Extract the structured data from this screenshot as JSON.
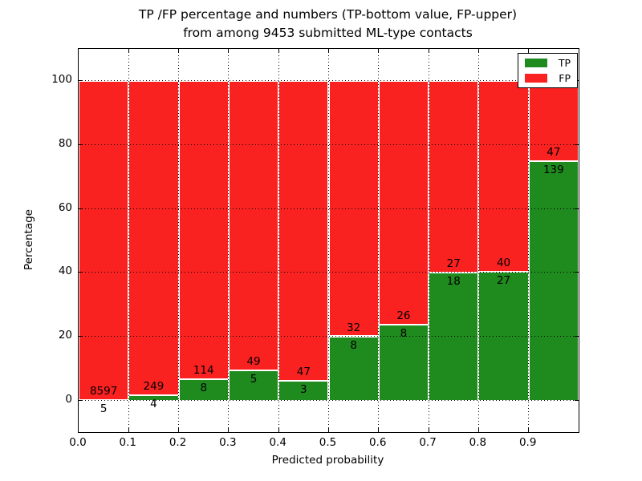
{
  "figure": {
    "title_line1": "TP /FP percentage and numbers (TP-bottom value, FP-upper)",
    "title_line2": "from among 9453 submitted ML-type contacts",
    "xlabel": "Predicted probability",
    "ylabel": "Percentage"
  },
  "legend": {
    "position": "upper right",
    "items": [
      {
        "label": "TP",
        "color": "#1f8a1e"
      },
      {
        "label": "FP",
        "color": "#fa2121"
      }
    ]
  },
  "chart_data": {
    "type": "bar",
    "stacked": true,
    "normalized_to_percent": true,
    "title": "TP /FP percentage and numbers (TP-bottom value, FP-upper) from among 9453 submitted ML-type contacts",
    "xlabel": "Predicted probability",
    "ylabel": "Percentage",
    "xlim": [
      0.0,
      1.0
    ],
    "ylim": [
      -10,
      110
    ],
    "grid": "dotted black, x at every 0.1, y at every 20",
    "bar_edge_color": "#ffffff",
    "x_tick_labels": [
      "0.0",
      "0.1",
      "0.2",
      "0.3",
      "0.4",
      "0.5",
      "0.6",
      "0.7",
      "0.8",
      "0.9"
    ],
    "x_tick_values": [
      0.0,
      0.1,
      0.2,
      0.3,
      0.4,
      0.5,
      0.6,
      0.7,
      0.8,
      0.9
    ],
    "y_tick_labels": [
      "0",
      "20",
      "40",
      "60",
      "80",
      "100"
    ],
    "y_tick_values": [
      0,
      20,
      40,
      60,
      80,
      100
    ],
    "bin_width": 0.1,
    "total_contacts": 9453,
    "series": [
      {
        "name": "TP",
        "color": "#1f8a1e",
        "values": [
          5,
          4,
          8,
          5,
          3,
          8,
          8,
          18,
          27,
          139
        ]
      },
      {
        "name": "FP",
        "color": "#fa2121",
        "values": [
          8597,
          249,
          114,
          49,
          47,
          32,
          26,
          27,
          40,
          47
        ]
      }
    ],
    "bins": [
      {
        "x_start": 0.0,
        "tp": 5,
        "fp": 8597,
        "tp_pct": 0.06,
        "fp_pct": 99.94
      },
      {
        "x_start": 0.1,
        "tp": 4,
        "fp": 249,
        "tp_pct": 1.58,
        "fp_pct": 98.42
      },
      {
        "x_start": 0.2,
        "tp": 8,
        "fp": 114,
        "tp_pct": 6.56,
        "fp_pct": 93.44
      },
      {
        "x_start": 0.3,
        "tp": 5,
        "fp": 49,
        "tp_pct": 9.26,
        "fp_pct": 90.74
      },
      {
        "x_start": 0.4,
        "tp": 3,
        "fp": 47,
        "tp_pct": 6.0,
        "fp_pct": 94.0
      },
      {
        "x_start": 0.5,
        "tp": 8,
        "fp": 32,
        "tp_pct": 20.0,
        "fp_pct": 80.0
      },
      {
        "x_start": 0.6,
        "tp": 8,
        "fp": 26,
        "tp_pct": 23.53,
        "fp_pct": 76.47
      },
      {
        "x_start": 0.7,
        "tp": 18,
        "fp": 27,
        "tp_pct": 40.0,
        "fp_pct": 60.0
      },
      {
        "x_start": 0.8,
        "tp": 27,
        "fp": 40,
        "tp_pct": 40.3,
        "fp_pct": 59.7
      },
      {
        "x_start": 0.9,
        "tp": 139,
        "fp": 47,
        "tp_pct": 74.73,
        "fp_pct": 25.27
      }
    ]
  },
  "colors": {
    "tp_green": "#1f8a1e",
    "fp_red": "#fa2121",
    "bar_edge": "#ffffff",
    "grid": "#000000",
    "background": "#ffffff",
    "text": "#000000"
  }
}
